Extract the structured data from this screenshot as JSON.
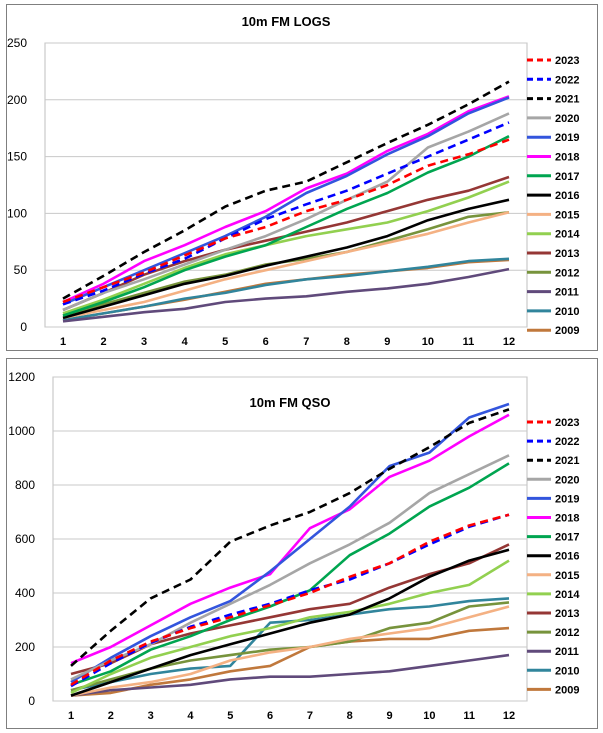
{
  "chart_data": [
    {
      "type": "line",
      "title": "10m FM LOGS",
      "xlabel": "",
      "ylabel": "",
      "x": [
        1,
        2,
        3,
        4,
        5,
        6,
        7,
        8,
        9,
        10,
        11,
        12
      ],
      "ylim": [
        0,
        250
      ],
      "yticks": [
        0,
        50,
        100,
        150,
        200,
        250
      ],
      "grid": "horizontal",
      "legend": "right",
      "series": [
        {
          "name": "2023",
          "color": "#ff0000",
          "dash": "dash",
          "values": [
            22,
            35,
            48,
            63,
            78,
            88,
            102,
            112,
            125,
            142,
            152,
            165
          ]
        },
        {
          "name": "2022",
          "color": "#0000ff",
          "dash": "dash",
          "values": [
            20,
            32,
            47,
            60,
            78,
            95,
            108,
            120,
            135,
            150,
            165,
            180
          ]
        },
        {
          "name": "2021",
          "color": "#000000",
          "dash": "dash",
          "values": [
            25,
            45,
            66,
            85,
            106,
            120,
            128,
            145,
            162,
            178,
            196,
            216
          ]
        },
        {
          "name": "2020",
          "color": "#a6a6a6",
          "dash": "solid",
          "values": [
            15,
            30,
            42,
            55,
            68,
            80,
            95,
            112,
            128,
            158,
            172,
            188
          ]
        },
        {
          "name": "2019",
          "color": "#3355dd",
          "dash": "solid",
          "values": [
            20,
            35,
            50,
            65,
            80,
            97,
            118,
            133,
            152,
            168,
            188,
            202
          ]
        },
        {
          "name": "2018",
          "color": "#ff00ff",
          "dash": "solid",
          "values": [
            22,
            38,
            58,
            72,
            88,
            102,
            122,
            135,
            155,
            170,
            190,
            203
          ]
        },
        {
          "name": "2017",
          "color": "#00a550",
          "dash": "solid",
          "values": [
            10,
            22,
            35,
            50,
            62,
            72,
            88,
            104,
            118,
            136,
            150,
            168
          ]
        },
        {
          "name": "2016",
          "color": "#000000",
          "dash": "solid",
          "values": [
            8,
            18,
            28,
            38,
            45,
            54,
            62,
            70,
            80,
            94,
            104,
            112
          ]
        },
        {
          "name": "2015",
          "color": "#f4b183",
          "dash": "solid",
          "values": [
            8,
            15,
            22,
            32,
            42,
            50,
            58,
            66,
            74,
            82,
            92,
            101
          ]
        },
        {
          "name": "2014",
          "color": "#92d050",
          "dash": "solid",
          "values": [
            12,
            24,
            38,
            52,
            64,
            72,
            80,
            86,
            92,
            102,
            114,
            128
          ]
        },
        {
          "name": "2013",
          "color": "#953735",
          "dash": "solid",
          "values": [
            15,
            30,
            46,
            58,
            68,
            76,
            84,
            92,
            102,
            112,
            120,
            132
          ]
        },
        {
          "name": "2012",
          "color": "#77933c",
          "dash": "solid",
          "values": [
            10,
            20,
            30,
            40,
            46,
            55,
            60,
            66,
            76,
            86,
            97,
            101
          ]
        },
        {
          "name": "2011",
          "color": "#604a7b",
          "dash": "solid",
          "values": [
            5,
            9,
            13,
            16,
            22,
            25,
            27,
            31,
            34,
            38,
            44,
            51
          ]
        },
        {
          "name": "2010",
          "color": "#31859c",
          "dash": "solid",
          "values": [
            6,
            12,
            18,
            25,
            30,
            37,
            42,
            45,
            49,
            53,
            58,
            60
          ]
        },
        {
          "name": "2009",
          "color": "#c0783c",
          "dash": "solid",
          "values": [
            6,
            12,
            18,
            24,
            31,
            38,
            42,
            46,
            49,
            52,
            57,
            59
          ]
        }
      ]
    },
    {
      "type": "line",
      "title": "10m FM QSO",
      "xlabel": "",
      "ylabel": "",
      "x": [
        1,
        2,
        3,
        4,
        5,
        6,
        7,
        8,
        9,
        10,
        11,
        12
      ],
      "ylim": [
        0,
        1200
      ],
      "yticks": [
        0,
        200,
        400,
        600,
        800,
        1000,
        1200
      ],
      "grid": "horizontal",
      "legend": "right",
      "series": [
        {
          "name": "2023",
          "color": "#ff0000",
          "dash": "dash",
          "values": [
            60,
            150,
            220,
            270,
            310,
            355,
            400,
            460,
            510,
            590,
            650,
            690
          ]
        },
        {
          "name": "2022",
          "color": "#0000ff",
          "dash": "dash",
          "values": [
            55,
            140,
            215,
            275,
            320,
            360,
            410,
            450,
            510,
            580,
            645,
            690
          ]
        },
        {
          "name": "2021",
          "color": "#000000",
          "dash": "dash",
          "values": [
            130,
            260,
            380,
            450,
            590,
            650,
            700,
            770,
            860,
            940,
            1030,
            1080
          ]
        },
        {
          "name": "2020",
          "color": "#a6a6a6",
          "dash": "solid",
          "values": [
            80,
            150,
            210,
            290,
            360,
            430,
            510,
            580,
            660,
            770,
            840,
            910
          ]
        },
        {
          "name": "2019",
          "color": "#3355dd",
          "dash": "solid",
          "values": [
            70,
            160,
            240,
            310,
            370,
            480,
            600,
            720,
            870,
            920,
            1050,
            1100
          ]
        },
        {
          "name": "2018",
          "color": "#ff00ff",
          "dash": "solid",
          "values": [
            140,
            200,
            280,
            360,
            420,
            470,
            640,
            710,
            830,
            890,
            980,
            1060
          ]
        },
        {
          "name": "2017",
          "color": "#00a550",
          "dash": "solid",
          "values": [
            60,
            110,
            190,
            240,
            300,
            350,
            410,
            540,
            620,
            720,
            790,
            880
          ]
        },
        {
          "name": "2016",
          "color": "#000000",
          "dash": "solid",
          "values": [
            20,
            70,
            120,
            170,
            210,
            250,
            290,
            320,
            380,
            460,
            520,
            560
          ]
        },
        {
          "name": "2015",
          "color": "#f4b183",
          "dash": "solid",
          "values": [
            20,
            50,
            70,
            100,
            150,
            180,
            200,
            230,
            250,
            270,
            310,
            350
          ]
        },
        {
          "name": "2014",
          "color": "#92d050",
          "dash": "solid",
          "values": [
            30,
            100,
            160,
            200,
            240,
            270,
            310,
            330,
            360,
            400,
            430,
            520
          ]
        },
        {
          "name": "2013",
          "color": "#953735",
          "dash": "solid",
          "values": [
            100,
            140,
            210,
            250,
            280,
            310,
            340,
            360,
            420,
            470,
            510,
            580
          ]
        },
        {
          "name": "2012",
          "color": "#77933c",
          "dash": "solid",
          "values": [
            40,
            80,
            120,
            150,
            170,
            190,
            200,
            220,
            270,
            290,
            350,
            365
          ]
        },
        {
          "name": "2011",
          "color": "#604a7b",
          "dash": "solid",
          "values": [
            20,
            40,
            50,
            60,
            80,
            90,
            90,
            100,
            110,
            130,
            150,
            170
          ]
        },
        {
          "name": "2010",
          "color": "#31859c",
          "dash": "solid",
          "values": [
            40,
            70,
            100,
            120,
            130,
            290,
            300,
            320,
            340,
            350,
            370,
            380
          ]
        },
        {
          "name": "2009",
          "color": "#c0783c",
          "dash": "solid",
          "values": [
            20,
            30,
            60,
            80,
            110,
            130,
            200,
            220,
            230,
            230,
            260,
            270
          ]
        }
      ]
    }
  ]
}
